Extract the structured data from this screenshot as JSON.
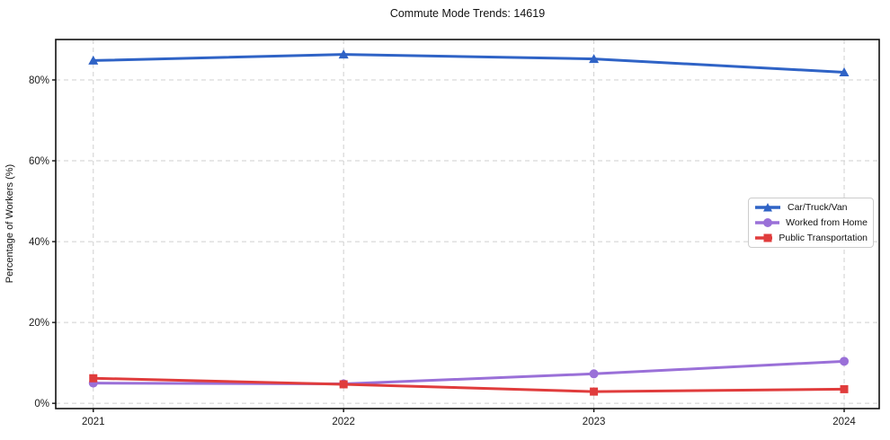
{
  "title": "Commute Mode Trends: 14619",
  "chart_data": {
    "type": "line",
    "title": "Commute Mode Trends: 14619",
    "xlabel": "",
    "ylabel": "Percentage of Workers (%)",
    "x": [
      2021,
      2022,
      2023,
      2024
    ],
    "x_tick_labels": [
      "2021",
      "2022",
      "2023",
      "2024"
    ],
    "y_ticks": [
      0,
      20,
      40,
      60,
      80
    ],
    "y_tick_labels": [
      "0%",
      "20%",
      "40%",
      "60%",
      "80%"
    ],
    "xlim": [
      2020.85,
      2024.14
    ],
    "ylim": [
      -1.3,
      90.0
    ],
    "grid": true,
    "grid_style": "dashed",
    "grid_color": "#cfcfcf",
    "spine_color": "#111111",
    "tick_label_color": "#1a1a1a",
    "background": "#ffffff",
    "legend_position": "right-center",
    "series": [
      {
        "name": "Car/Truck/Van",
        "marker": "triangle",
        "color": "#2f63c6",
        "values": [
          84.8,
          86.3,
          85.2,
          81.9
        ]
      },
      {
        "name": "Worked from Home",
        "marker": "circle",
        "color": "#9a70d8",
        "values": [
          5.0,
          4.8,
          7.3,
          10.4
        ]
      },
      {
        "name": "Public Transportation",
        "marker": "square",
        "color": "#e03c3c",
        "values": [
          6.2,
          4.7,
          2.9,
          3.5
        ]
      }
    ]
  }
}
